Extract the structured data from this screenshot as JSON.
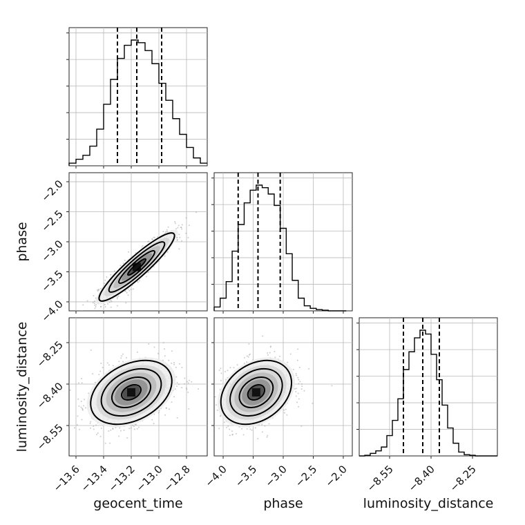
{
  "chart_data": {
    "type": "corner",
    "parameters": [
      "geocent_time",
      "phase",
      "luminosity_distance"
    ],
    "ranges": {
      "geocent_time": [
        -13.65,
        -12.65
      ],
      "phase": [
        -4.15,
        -1.85
      ],
      "luminosity_distance": [
        -8.66,
        -8.16
      ]
    },
    "ticks": {
      "geocent_time": [
        -13.6,
        -13.4,
        -13.2,
        -13.0,
        -12.8
      ],
      "phase": [
        -4.0,
        -3.5,
        -3.0,
        -2.5,
        -2.0
      ],
      "luminosity_distance": [
        -8.55,
        -8.4,
        -8.25
      ]
    },
    "tick_labels": {
      "geocent_time": [
        "−13.6",
        "−13.4",
        "−13.2",
        "−13.0",
        "−12.8"
      ],
      "phase": [
        "−4.0",
        "−3.5",
        "−3.0",
        "−2.5",
        "−2.0"
      ],
      "luminosity_distance": [
        "−8.55",
        "−8.40",
        "−8.25"
      ]
    },
    "grid": true,
    "histograms": {
      "geocent_time": {
        "edges": [
          -13.65,
          -13.6,
          -13.55,
          -13.5,
          -13.45,
          -13.4,
          -13.35,
          -13.3,
          -13.25,
          -13.2,
          -13.15,
          -13.1,
          -13.05,
          -13.0,
          -12.95,
          -12.9,
          -12.85,
          -12.8,
          -12.75,
          -12.7,
          -12.65
        ],
        "counts": [
          0.02,
          0.05,
          0.08,
          0.15,
          0.28,
          0.47,
          0.66,
          0.82,
          0.92,
          0.96,
          0.94,
          0.88,
          0.78,
          0.63,
          0.5,
          0.36,
          0.24,
          0.14,
          0.06,
          0.02
        ],
        "quantiles": [
          -13.3,
          -13.16,
          -12.98
        ]
      },
      "phase": {
        "edges": [
          -4.15,
          -4.05,
          -3.95,
          -3.85,
          -3.75,
          -3.65,
          -3.55,
          -3.45,
          -3.35,
          -3.25,
          -3.15,
          -3.05,
          -2.95,
          -2.85,
          -2.75,
          -2.65,
          -2.55,
          -2.45,
          -2.35,
          -2.25,
          -2.15,
          -2.05,
          -1.95
        ],
        "counts": [
          0.03,
          0.1,
          0.23,
          0.47,
          0.68,
          0.85,
          0.95,
          0.99,
          0.97,
          0.92,
          0.83,
          0.65,
          0.45,
          0.24,
          0.1,
          0.04,
          0.02,
          0.01,
          0.005,
          0.0,
          0.0,
          0.0
        ],
        "quantiles": [
          -3.75,
          -3.42,
          -3.05
        ]
      },
      "luminosity_distance": {
        "edges": [
          -8.66,
          -8.64,
          -8.62,
          -8.6,
          -8.58,
          -8.56,
          -8.54,
          -8.52,
          -8.5,
          -8.48,
          -8.46,
          -8.44,
          -8.42,
          -8.4,
          -8.38,
          -8.36,
          -8.34,
          -8.32,
          -8.3,
          -8.28,
          -8.26,
          -8.24,
          -8.22,
          -8.2,
          -8.18,
          -8.16
        ],
        "counts": [
          0.0,
          0.005,
          0.02,
          0.04,
          0.07,
          0.16,
          0.28,
          0.45,
          0.68,
          0.82,
          0.93,
          0.99,
          0.96,
          0.8,
          0.6,
          0.4,
          0.22,
          0.1,
          0.03,
          0.01,
          0.005,
          0.0,
          0.0,
          0.0,
          0.0
        ],
        "quantiles": [
          -8.5,
          -8.43,
          -8.37
        ]
      }
    },
    "joint": [
      {
        "x": "geocent_time",
        "y": "phase",
        "mean": [
          -13.16,
          -3.42
        ],
        "std": [
          0.13,
          0.27
        ],
        "corr": 0.92
      },
      {
        "x": "geocent_time",
        "y": "luminosity_distance",
        "mean": [
          -13.2,
          -8.43
        ],
        "std": [
          0.14,
          0.055
        ],
        "corr": 0.35
      },
      {
        "x": "phase",
        "y": "luminosity_distance",
        "mean": [
          -3.45,
          -8.43
        ],
        "std": [
          0.28,
          0.055
        ],
        "corr": 0.3
      }
    ]
  }
}
